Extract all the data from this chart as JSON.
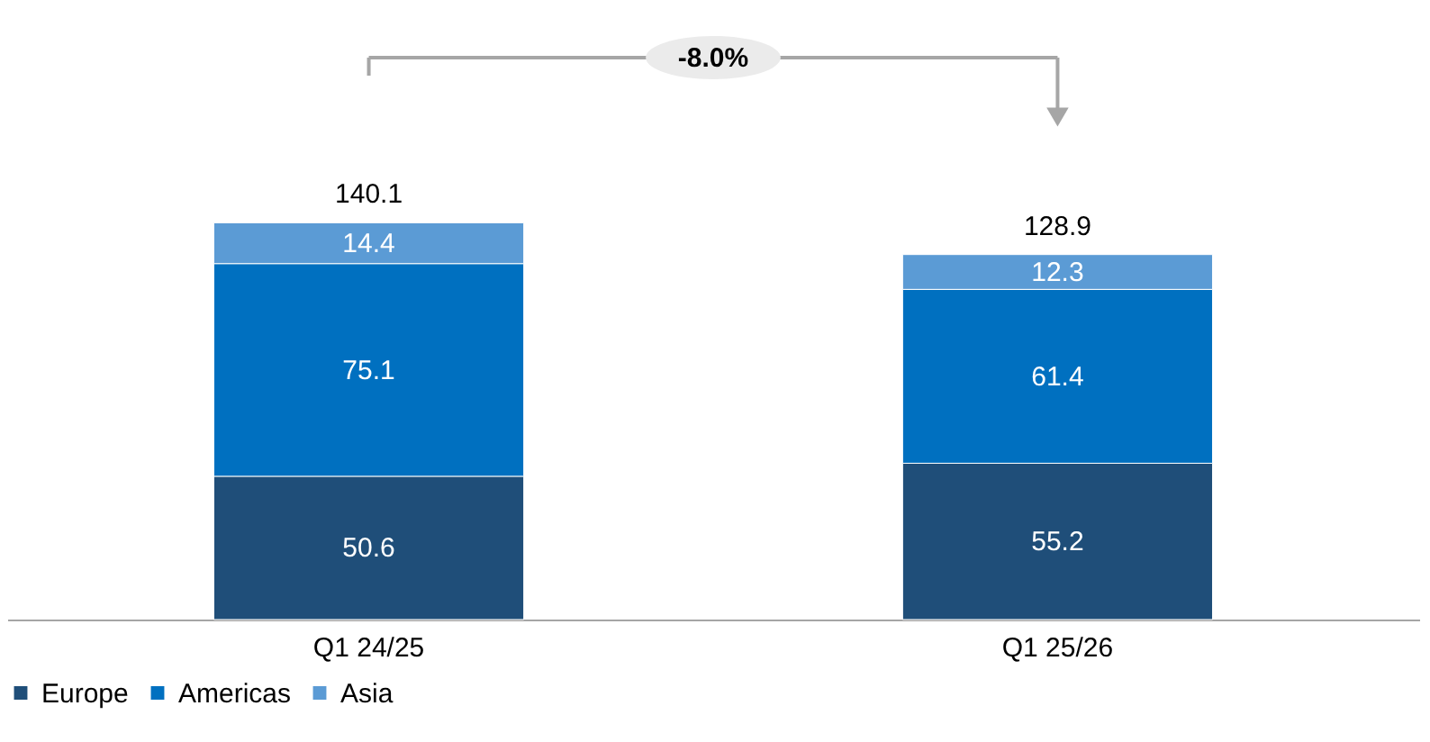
{
  "chart_data": {
    "type": "bar",
    "stacked": true,
    "data_labels": true,
    "tick_labels": "x",
    "legend": "bottom",
    "categories": [
      "Q1 24/25",
      "Q1 25/26"
    ],
    "series": [
      {
        "name": "Europe",
        "color": "#1f4e79",
        "values": [
          50.6,
          55.2
        ]
      },
      {
        "name": "Americas",
        "color": "#0070c0",
        "values": [
          75.1,
          61.4
        ]
      },
      {
        "name": "Asia",
        "color": "#5b9bd5",
        "values": [
          14.4,
          12.3
        ]
      }
    ],
    "totals": [
      "140.1",
      "128.9"
    ],
    "annotations": [
      "-8.0%"
    ]
  }
}
